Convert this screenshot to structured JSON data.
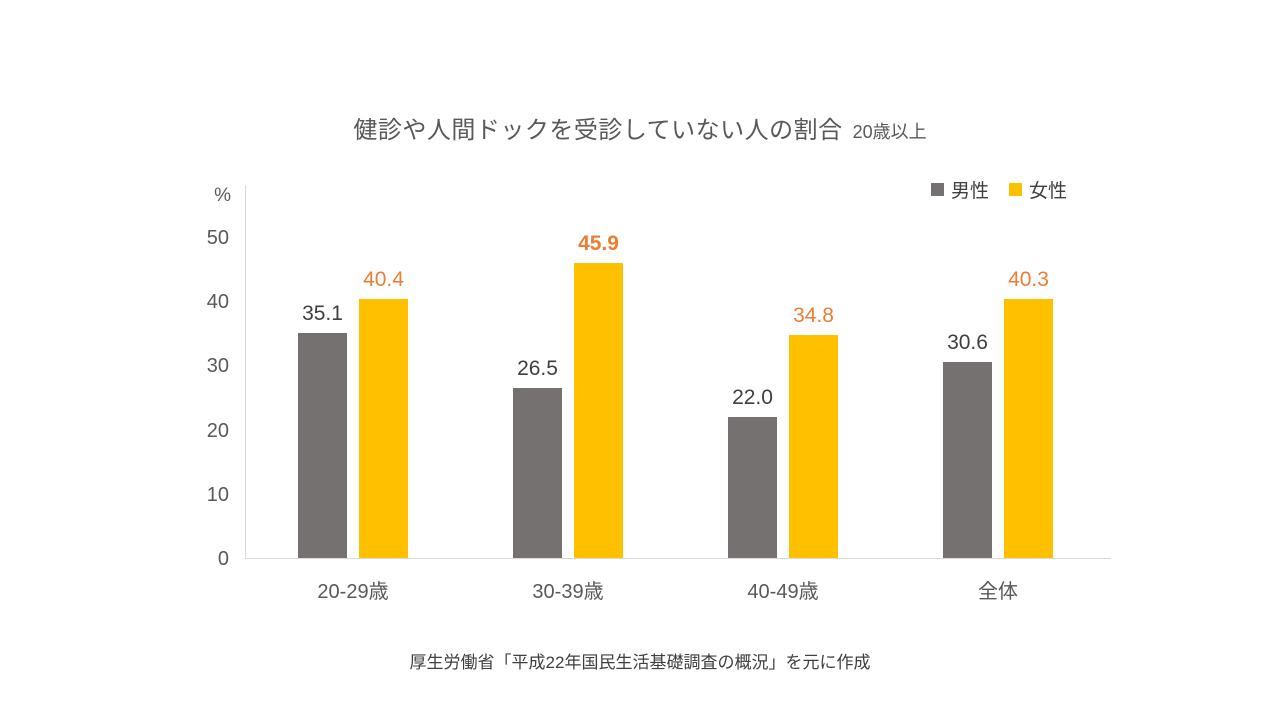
{
  "title": {
    "main": "健診や人間ドックを受診していない人の割合",
    "suffix": "20歳以上"
  },
  "footer": "厚生労働省「平成22年国民生活基礎調査の概況」を元に作成",
  "colors": {
    "male_bar": "#767171",
    "female_bar": "#FFC000",
    "male_label": "#3F3F3F",
    "female_label": "#ED7D31",
    "axis_line": "#D9D9D9",
    "axis_text": "#595959",
    "title_text": "#595959"
  },
  "chart_data": {
    "type": "bar",
    "title": "健診や人間ドックを受診していない人の割合（20歳以上）",
    "categories": [
      "20-29歳",
      "30-39歳",
      "40-49歳",
      "全体"
    ],
    "series": [
      {
        "name": "男性",
        "color": "#767171",
        "label_color": "#3F3F3F",
        "values": [
          35.1,
          26.5,
          22.0,
          30.6
        ],
        "value_labels": [
          "35.1",
          "26.5",
          "22.0",
          "30.6"
        ],
        "label_bold": [
          false,
          false,
          false,
          false
        ]
      },
      {
        "name": "女性",
        "color": "#FFC000",
        "label_color": "#ED7D31",
        "values": [
          40.4,
          45.9,
          34.8,
          40.3
        ],
        "value_labels": [
          "40.4",
          "45.9",
          "34.8",
          "40.3"
        ],
        "label_bold": [
          false,
          true,
          false,
          false
        ]
      }
    ],
    "xlabel": "",
    "ylabel": "%",
    "ylim": [
      0,
      50
    ],
    "yticks": [
      0,
      10,
      20,
      30,
      40,
      50
    ],
    "grid": false,
    "legend_position": "top-right"
  }
}
